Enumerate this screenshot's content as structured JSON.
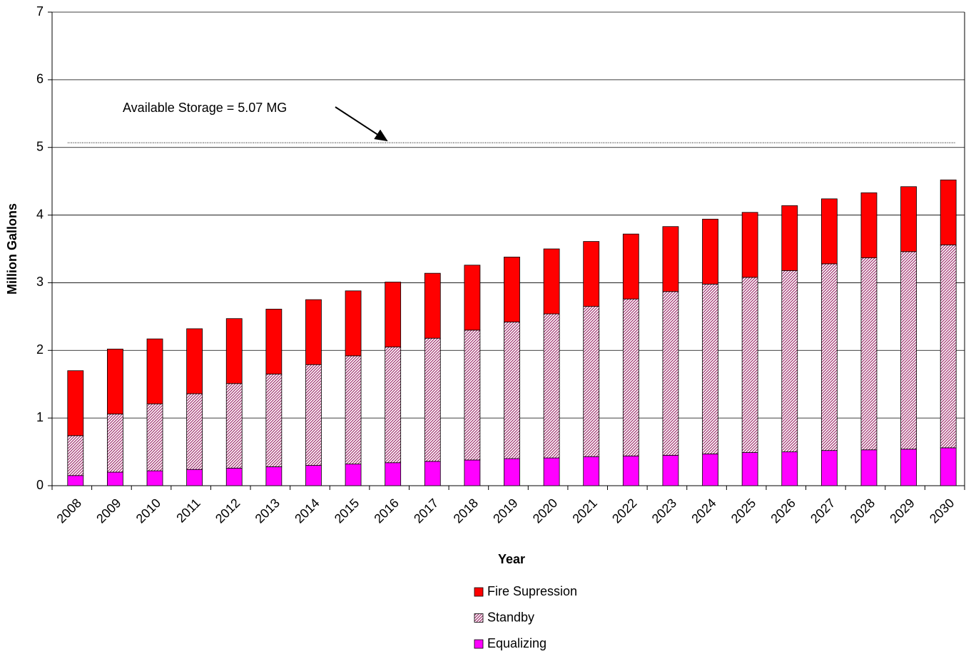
{
  "chart_data": {
    "type": "stacked_bar",
    "x_label": "Year",
    "y_label": "Million Gallons",
    "categories": [
      "2008",
      "2009",
      "2010",
      "2011",
      "2012",
      "2013",
      "2014",
      "2015",
      "2016",
      "2017",
      "2018",
      "2019",
      "2020",
      "2021",
      "2022",
      "2023",
      "2024",
      "2025",
      "2026",
      "2027",
      "2028",
      "2029",
      "2030"
    ],
    "series": [
      {
        "name": "Equalizing",
        "color": "#ff00ff",
        "values": [
          0.15,
          0.2,
          0.22,
          0.24,
          0.26,
          0.28,
          0.3,
          0.32,
          0.34,
          0.36,
          0.38,
          0.4,
          0.41,
          0.43,
          0.44,
          0.45,
          0.47,
          0.49,
          0.5,
          0.52,
          0.53,
          0.54,
          0.56
        ]
      },
      {
        "name": "Standby",
        "color": "#a0306e",
        "pattern": "hatch",
        "values": [
          0.59,
          0.86,
          0.99,
          1.12,
          1.25,
          1.37,
          1.49,
          1.6,
          1.71,
          1.82,
          1.92,
          2.02,
          2.13,
          2.22,
          2.32,
          2.42,
          2.51,
          2.59,
          2.68,
          2.76,
          2.84,
          2.92,
          3.0
        ]
      },
      {
        "name": "Fire Supression",
        "color": "#ff0000",
        "values": [
          0.96,
          0.96,
          0.96,
          0.96,
          0.96,
          0.96,
          0.96,
          0.96,
          0.96,
          0.96,
          0.96,
          0.96,
          0.96,
          0.96,
          0.96,
          0.96,
          0.96,
          0.96,
          0.96,
          0.96,
          0.96,
          0.96,
          0.96
        ]
      }
    ],
    "reference_line": {
      "value": 5.07,
      "label": "Available Storage = 5.07 MG"
    },
    "ylim": [
      0,
      7
    ],
    "yticks": [
      0,
      1,
      2,
      3,
      4,
      5,
      6,
      7
    ],
    "grid": true,
    "legend": "bottom"
  }
}
